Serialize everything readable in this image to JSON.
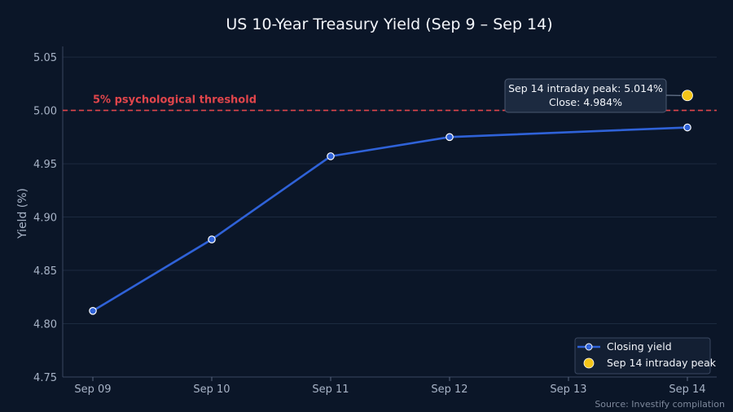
{
  "chart_data": {
    "type": "line",
    "title": "US 10-Year Treasury Yield (Sep 9 – Sep 14)",
    "xlabel": "",
    "ylabel": "Yield (%)",
    "categories": [
      "Sep 09",
      "Sep 10",
      "Sep 11",
      "Sep 12",
      "Sep 13",
      "Sep 14"
    ],
    "ylim": [
      4.75,
      5.06
    ],
    "yticks": [
      "4.75",
      "4.80",
      "4.85",
      "4.90",
      "4.95",
      "5.00",
      "5.05"
    ],
    "grid": true,
    "series": [
      {
        "name": "Closing yield",
        "color": "#2f62d8",
        "points": [
          {
            "x": "Sep 09",
            "y": 4.812
          },
          {
            "x": "Sep 10",
            "y": 4.879
          },
          {
            "x": "Sep 11",
            "y": 4.957
          },
          {
            "x": "Sep 12",
            "y": 4.975
          },
          {
            "x": "Sep 14",
            "y": 4.984
          }
        ]
      },
      {
        "name": "Sep 14 intraday peak",
        "color": "#f5c518",
        "points": [
          {
            "x": "Sep 14",
            "y": 5.014
          }
        ]
      }
    ],
    "threshold": {
      "y": 5.0,
      "label": "5% psychological threshold",
      "color": "#e0454b"
    },
    "annotation": {
      "lines": [
        "Sep 14 intraday peak: 5.014%",
        "Close: 4.984%"
      ]
    },
    "legend_position": "bottom-right",
    "source": "Source: Investify compilation"
  }
}
